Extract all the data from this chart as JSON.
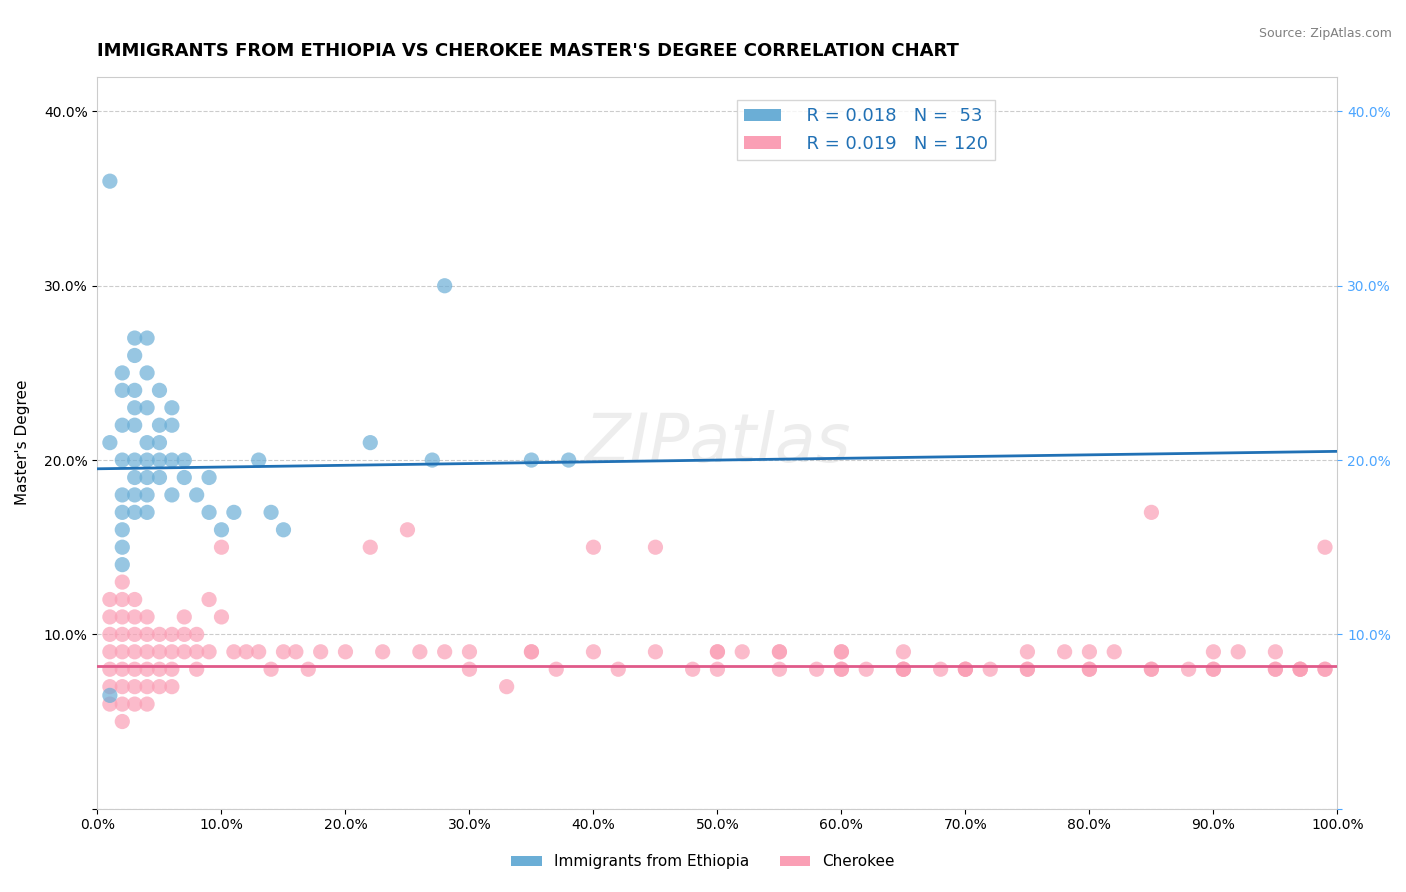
{
  "title": "IMMIGRANTS FROM ETHIOPIA VS CHEROKEE MASTER'S DEGREE CORRELATION CHART",
  "source": "Source: ZipAtlas.com",
  "xlabel": "",
  "ylabel": "Master's Degree",
  "watermark": "ZIPatlas",
  "legend_label1": "Immigrants from Ethiopia",
  "legend_label2": "Cherokee",
  "R1": 0.018,
  "N1": 53,
  "R2": 0.019,
  "N2": 120,
  "color1": "#6baed6",
  "color2": "#fa9fb5",
  "line_color1": "#2171b5",
  "line_color2": "#e05a8a",
  "xlim": [
    0,
    1.0
  ],
  "ylim": [
    0,
    0.42
  ],
  "xticks": [
    0.0,
    0.1,
    0.2,
    0.3,
    0.4,
    0.5,
    0.6,
    0.7,
    0.8,
    0.9,
    1.0
  ],
  "xtick_labels": [
    "0.0%",
    "10.0%",
    "20.0%",
    "30.0%",
    "40.0%",
    "50.0%",
    "60.0%",
    "70.0%",
    "80.0%",
    "90.0%",
    "100.0%"
  ],
  "yticks": [
    0.0,
    0.1,
    0.2,
    0.3,
    0.4
  ],
  "ytick_labels": [
    "",
    "10.0%",
    "20.0%",
    "30.0%",
    "40.0%"
  ],
  "scatter1_x": [
    0.01,
    0.01,
    0.01,
    0.02,
    0.02,
    0.02,
    0.02,
    0.02,
    0.02,
    0.02,
    0.02,
    0.02,
    0.03,
    0.03,
    0.03,
    0.03,
    0.03,
    0.03,
    0.03,
    0.03,
    0.03,
    0.04,
    0.04,
    0.04,
    0.04,
    0.04,
    0.04,
    0.04,
    0.04,
    0.05,
    0.05,
    0.05,
    0.05,
    0.05,
    0.06,
    0.06,
    0.06,
    0.06,
    0.07,
    0.07,
    0.08,
    0.09,
    0.09,
    0.1,
    0.11,
    0.13,
    0.14,
    0.15,
    0.22,
    0.27,
    0.28,
    0.35,
    0.38
  ],
  "scatter1_y": [
    0.065,
    0.36,
    0.21,
    0.25,
    0.24,
    0.22,
    0.2,
    0.18,
    0.17,
    0.16,
    0.15,
    0.14,
    0.27,
    0.26,
    0.24,
    0.23,
    0.22,
    0.2,
    0.19,
    0.18,
    0.17,
    0.27,
    0.25,
    0.23,
    0.21,
    0.2,
    0.19,
    0.18,
    0.17,
    0.24,
    0.22,
    0.21,
    0.2,
    0.19,
    0.23,
    0.22,
    0.2,
    0.18,
    0.2,
    0.19,
    0.18,
    0.19,
    0.17,
    0.16,
    0.17,
    0.2,
    0.17,
    0.16,
    0.21,
    0.2,
    0.3,
    0.2,
    0.2
  ],
  "scatter2_x": [
    0.01,
    0.01,
    0.01,
    0.01,
    0.01,
    0.01,
    0.01,
    0.02,
    0.02,
    0.02,
    0.02,
    0.02,
    0.02,
    0.02,
    0.02,
    0.02,
    0.03,
    0.03,
    0.03,
    0.03,
    0.03,
    0.03,
    0.03,
    0.04,
    0.04,
    0.04,
    0.04,
    0.04,
    0.04,
    0.05,
    0.05,
    0.05,
    0.05,
    0.06,
    0.06,
    0.06,
    0.06,
    0.07,
    0.07,
    0.07,
    0.08,
    0.08,
    0.08,
    0.09,
    0.09,
    0.1,
    0.1,
    0.11,
    0.12,
    0.13,
    0.14,
    0.15,
    0.16,
    0.17,
    0.18,
    0.2,
    0.22,
    0.23,
    0.25,
    0.26,
    0.28,
    0.3,
    0.33,
    0.35,
    0.37,
    0.4,
    0.42,
    0.45,
    0.48,
    0.5,
    0.52,
    0.55,
    0.58,
    0.6,
    0.62,
    0.65,
    0.68,
    0.7,
    0.72,
    0.75,
    0.78,
    0.8,
    0.82,
    0.85,
    0.88,
    0.9,
    0.92,
    0.95,
    0.97,
    0.99,
    0.6,
    0.65,
    0.7,
    0.75,
    0.8,
    0.85,
    0.9,
    0.95,
    0.97,
    0.99,
    0.5,
    0.55,
    0.6,
    0.65,
    0.7,
    0.75,
    0.8,
    0.85,
    0.9,
    0.95,
    0.97,
    0.99,
    0.3,
    0.35,
    0.4,
    0.45,
    0.5,
    0.55,
    0.6,
    0.65
  ],
  "scatter2_y": [
    0.12,
    0.11,
    0.1,
    0.09,
    0.08,
    0.07,
    0.06,
    0.13,
    0.12,
    0.11,
    0.1,
    0.09,
    0.08,
    0.07,
    0.06,
    0.05,
    0.12,
    0.11,
    0.1,
    0.09,
    0.08,
    0.07,
    0.06,
    0.11,
    0.1,
    0.09,
    0.08,
    0.07,
    0.06,
    0.1,
    0.09,
    0.08,
    0.07,
    0.1,
    0.09,
    0.08,
    0.07,
    0.11,
    0.1,
    0.09,
    0.1,
    0.09,
    0.08,
    0.12,
    0.09,
    0.15,
    0.11,
    0.09,
    0.09,
    0.09,
    0.08,
    0.09,
    0.09,
    0.08,
    0.09,
    0.09,
    0.15,
    0.09,
    0.16,
    0.09,
    0.09,
    0.09,
    0.07,
    0.09,
    0.08,
    0.15,
    0.08,
    0.15,
    0.08,
    0.09,
    0.09,
    0.09,
    0.08,
    0.09,
    0.08,
    0.08,
    0.08,
    0.08,
    0.08,
    0.09,
    0.09,
    0.09,
    0.09,
    0.17,
    0.08,
    0.09,
    0.09,
    0.09,
    0.08,
    0.15,
    0.08,
    0.08,
    0.08,
    0.08,
    0.08,
    0.08,
    0.08,
    0.08,
    0.08,
    0.08,
    0.08,
    0.08,
    0.08,
    0.08,
    0.08,
    0.08,
    0.08,
    0.08,
    0.08,
    0.08,
    0.08,
    0.08,
    0.08,
    0.09,
    0.09,
    0.09,
    0.09,
    0.09,
    0.09,
    0.09
  ],
  "line1_x": [
    0.0,
    1.0
  ],
  "line1_y": [
    0.195,
    0.205
  ],
  "line2_x": [
    0.0,
    1.0
  ],
  "line2_y": [
    0.082,
    0.082
  ],
  "grid_color": "#cccccc",
  "background_color": "#ffffff",
  "title_fontsize": 13,
  "axis_fontsize": 11,
  "tick_fontsize": 10
}
